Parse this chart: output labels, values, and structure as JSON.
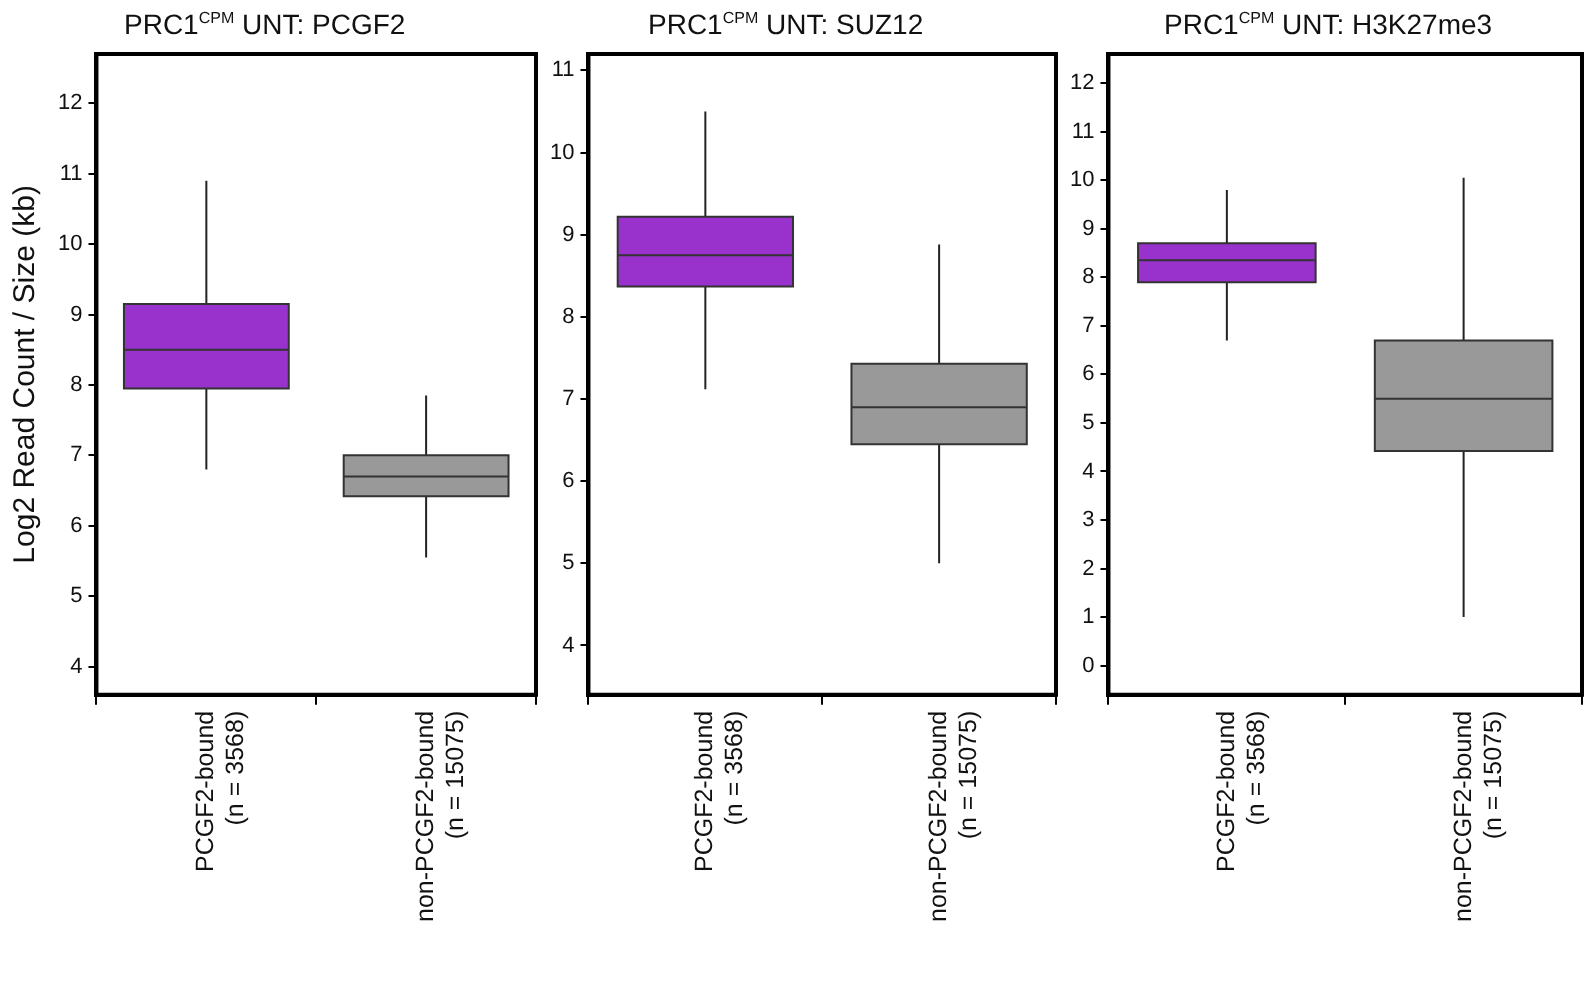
{
  "chart_data": [
    {
      "type": "box",
      "title": "PRC1$^{CPM}$ UNT: PCGF2",
      "ylabel": "Log2 Read Count / Size (kb)",
      "categories": [
        "PCGF2-bound\n(n = 3568)",
        "non-PCGF2-bound\n(n = 15075)"
      ],
      "colors": [
        "#9932cc",
        "#999999"
      ],
      "boxes": [
        {
          "low": 6.8,
          "q1": 7.95,
          "median": 8.5,
          "q3": 9.15,
          "high": 10.9
        },
        {
          "low": 5.55,
          "q1": 6.42,
          "median": 6.7,
          "q3": 7.0,
          "high": 7.85
        }
      ],
      "ylim": [
        3.6,
        12.7
      ],
      "yticks": [
        4,
        5,
        6,
        7,
        8,
        9,
        10,
        11,
        12
      ]
    },
    {
      "type": "box",
      "title": "PRC1$^{CPM}$ UNT: SUZ12",
      "categories": [
        "PCGF2-bound\n(n = 3568)",
        "non-PCGF2-bound\n(n = 15075)"
      ],
      "colors": [
        "#9932cc",
        "#999999"
      ],
      "boxes": [
        {
          "low": 7.12,
          "q1": 8.37,
          "median": 8.75,
          "q3": 9.22,
          "high": 10.5
        },
        {
          "low": 5.0,
          "q1": 6.45,
          "median": 6.9,
          "q3": 7.43,
          "high": 8.88
        }
      ],
      "ylim": [
        3.4,
        11.2
      ],
      "yticks": [
        4,
        5,
        6,
        7,
        8,
        9,
        10,
        11
      ]
    },
    {
      "type": "box",
      "title": "PRC1$^{CPM}$ UNT: H3K27me3",
      "categories": [
        "PCGF2-bound\n(n = 3568)",
        "non-PCGF2-bound\n(n = 15075)"
      ],
      "colors": [
        "#9932cc",
        "#999999"
      ],
      "boxes": [
        {
          "low": 6.7,
          "q1": 7.9,
          "median": 8.35,
          "q3": 8.7,
          "high": 9.8
        },
        {
          "low": 1.0,
          "q1": 4.42,
          "median": 5.5,
          "q3": 6.7,
          "high": 10.05
        }
      ],
      "ylim": [
        -0.6,
        12.6
      ],
      "yticks": [
        0,
        1,
        2,
        3,
        4,
        5,
        6,
        7,
        8,
        9,
        10,
        11,
        12
      ]
    }
  ]
}
